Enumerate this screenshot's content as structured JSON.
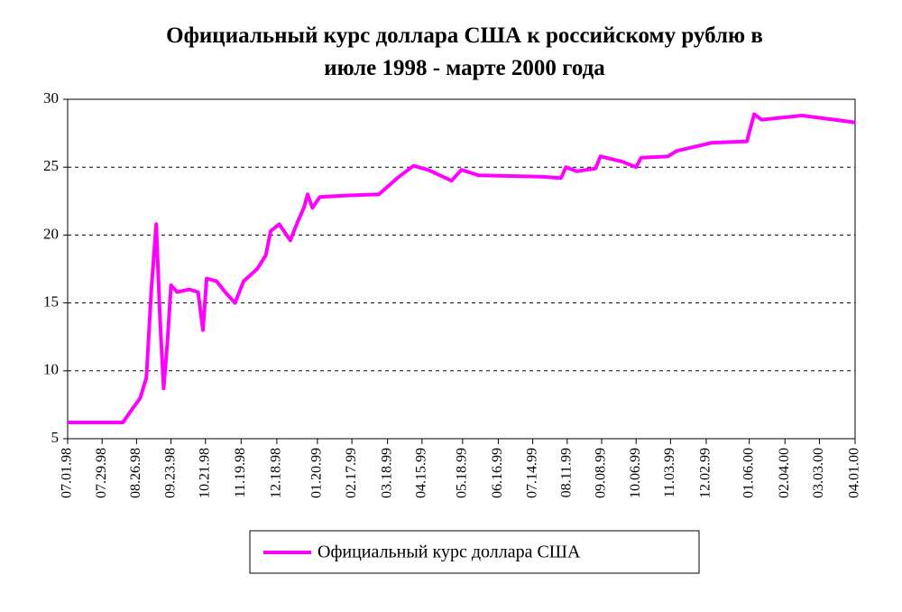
{
  "chart_data": {
    "type": "line",
    "title": "Официальный курс доллара США к российскому рублю в  июле 1998 - марте 2000 года",
    "x": [
      "1998-07-01",
      "1998-08-15",
      "1998-08-21",
      "1998-08-29",
      "1998-09-03",
      "1998-09-07",
      "1998-09-11",
      "1998-09-14",
      "1998-09-17",
      "1998-09-20",
      "1998-09-23",
      "1998-09-28",
      "1998-10-08",
      "1998-10-15",
      "1998-10-19",
      "1998-10-22",
      "1998-10-30",
      "1998-11-06",
      "1998-11-14",
      "1998-11-21",
      "1998-12-02",
      "1998-12-09",
      "1998-12-13",
      "1998-12-20",
      "1998-12-29",
      "1999-01-04",
      "1999-01-09",
      "1999-01-12",
      "1999-01-16",
      "1999-01-22",
      "1999-02-10",
      "1999-03-11",
      "1999-03-26",
      "1999-04-08",
      "1999-04-20",
      "1999-05-09",
      "1999-05-17",
      "1999-05-31",
      "1999-07-21",
      "1999-08-06",
      "1999-08-10",
      "1999-08-19",
      "1999-09-03",
      "1999-09-07",
      "1999-09-25",
      "1999-10-06",
      "1999-10-10",
      "1999-11-01",
      "1999-11-08",
      "1999-12-07",
      "2000-01-04",
      "2000-01-10",
      "2000-01-16",
      "2000-02-18",
      "2000-04-01"
    ],
    "series": [
      {
        "name": "Официальный курс доллара США",
        "color": "#ff00ff",
        "values": [
          6.2,
          6.2,
          7.0,
          8.0,
          9.5,
          16,
          20.8,
          14,
          8.7,
          12,
          16.3,
          15.8,
          16.0,
          15.8,
          13.0,
          16.8,
          16.6,
          15.8,
          15.0,
          16.6,
          17.5,
          18.5,
          20.3,
          20.8,
          19.6,
          21.0,
          22.0,
          23.0,
          22.0,
          22.8,
          22.9,
          23.0,
          24.2,
          25.1,
          24.8,
          24.0,
          24.8,
          24.4,
          24.3,
          24.2,
          25.0,
          24.7,
          24.9,
          25.8,
          25.4,
          25.0,
          25.7,
          25.8,
          26.2,
          26.8,
          26.9,
          28.9,
          28.5,
          28.8,
          28.3
        ]
      }
    ],
    "xlim": [
      "1998-07-01",
      "2000-04-01"
    ],
    "xticks": [
      {
        "value": "1998-07-01",
        "label": "07.01.98"
      },
      {
        "value": "1998-07-29",
        "label": "07.29.98"
      },
      {
        "value": "1998-08-26",
        "label": "08.26.98"
      },
      {
        "value": "1998-09-23",
        "label": "09.23.98"
      },
      {
        "value": "1998-10-21",
        "label": "10.21.98"
      },
      {
        "value": "1998-11-19",
        "label": "11.19.98"
      },
      {
        "value": "1998-12-18",
        "label": "12.18.98"
      },
      {
        "value": "1999-01-20",
        "label": "01.20.99"
      },
      {
        "value": "1999-02-17",
        "label": "02.17.99"
      },
      {
        "value": "1999-03-18",
        "label": "03.18.99"
      },
      {
        "value": "1999-04-15",
        "label": "04.15.99"
      },
      {
        "value": "1999-05-18",
        "label": "05.18.99"
      },
      {
        "value": "1999-06-16",
        "label": "06.16.99"
      },
      {
        "value": "1999-07-14",
        "label": "07.14.99"
      },
      {
        "value": "1999-08-11",
        "label": "08.11.99"
      },
      {
        "value": "1999-09-08",
        "label": "09.08.99"
      },
      {
        "value": "1999-10-06",
        "label": "10.06.99"
      },
      {
        "value": "1999-11-03",
        "label": "11.03.99"
      },
      {
        "value": "1999-12-02",
        "label": "12.02.99"
      },
      {
        "value": "2000-01-06",
        "label": "01.06.00"
      },
      {
        "value": "2000-02-04",
        "label": "02.04.00"
      },
      {
        "value": "2000-03-03",
        "label": "03.03.00"
      },
      {
        "value": "2000-04-01",
        "label": "04.01.00"
      }
    ],
    "ylim": [
      5,
      30
    ],
    "yticks": [
      5,
      10,
      15,
      20,
      25,
      30
    ],
    "grid": true,
    "legend": "bottom"
  }
}
